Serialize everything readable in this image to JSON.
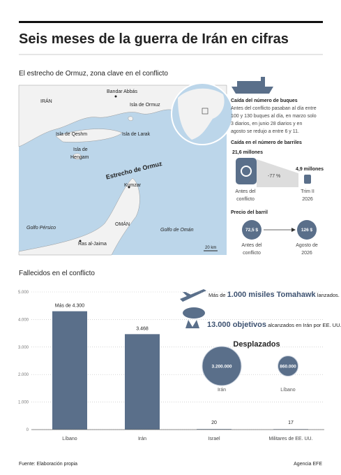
{
  "header": {
    "title": "Seis meses de la guerra de Irán en cifras"
  },
  "map": {
    "title": "El estrecho de Ormuz, zona clave en el conflicto",
    "labels": [
      "IRÁN",
      "Bandar Abbás",
      "Isla de Ormuz",
      "Isla de Qeshm",
      "Isla de Larak",
      "Isla de",
      "Hengam",
      "Estrecho de Ormuz",
      "Kumzar",
      "OMÁN",
      "Golfo Pérsico",
      "Golfo de Omán",
      "Ras al-Jaima",
      "20 km"
    ]
  },
  "side_panel": {
    "ships": {
      "title": "Caída del número de buques",
      "lines": [
        "Antes del conflicto pasaban al día entre",
        "100 y 130 buques al día, en marzo solo",
        "3 diarios, en junio 28 diarios y en",
        "agosto se redujo a entre 6 y 11."
      ]
    },
    "barrels": {
      "title": "Caída en el número de barriles",
      "before": "21,6 millones",
      "after": "4,9 millones",
      "change": "-77 %",
      "before_label": [
        "Antes del",
        "conflicto"
      ],
      "after_label": [
        "Trim II",
        "2026"
      ]
    },
    "price": {
      "title": "Precio del barril",
      "before": "72,5 $",
      "after": "126 $",
      "before_label": [
        "Antes del",
        "conflicto"
      ],
      "after_label": [
        "Agosto de",
        "2026"
      ]
    }
  },
  "chart_data": [
    {
      "type": "bar",
      "title": "Fallecidos en el conflicto",
      "categories": [
        "Líbano",
        "Irán",
        "Israel",
        "Militares de EE. UU."
      ],
      "values": [
        4300,
        3468,
        20,
        17
      ],
      "value_labels": [
        "Más de 4.300",
        "3.468",
        "20",
        "17"
      ],
      "color": "#5a6f8a",
      "ylim": [
        0,
        5000
      ],
      "yticks": [
        0,
        {
          "value": 1000,
          "label": "1.000"
        },
        {
          "value": 2000,
          "label": "2.000"
        },
        {
          "value": 3000,
          "label": "3.000"
        },
        {
          "value": 4000,
          "label": "4.000"
        },
        {
          "value": 5000,
          "label": "5.000"
        }
      ],
      "grid": true
    },
    {
      "type": "bubble",
      "title": "Desplazados",
      "categories": [
        "Irán",
        "Líbano"
      ],
      "values": [
        3200000,
        860000
      ],
      "value_labels": [
        "3.200.000",
        "860.000"
      ],
      "color": "#5a6f8a"
    }
  ],
  "annotations": [
    {
      "pre": "Más de",
      "bold": "1.000 misiles Tomahawk",
      "post": "lanzados."
    },
    {
      "bold": "13.000 objetivos",
      "post": "alcanzados en Irán por EE. UU."
    }
  ],
  "footer": {
    "source": "Fuente: Elaboración propia",
    "agency": "Agencia EFE"
  }
}
